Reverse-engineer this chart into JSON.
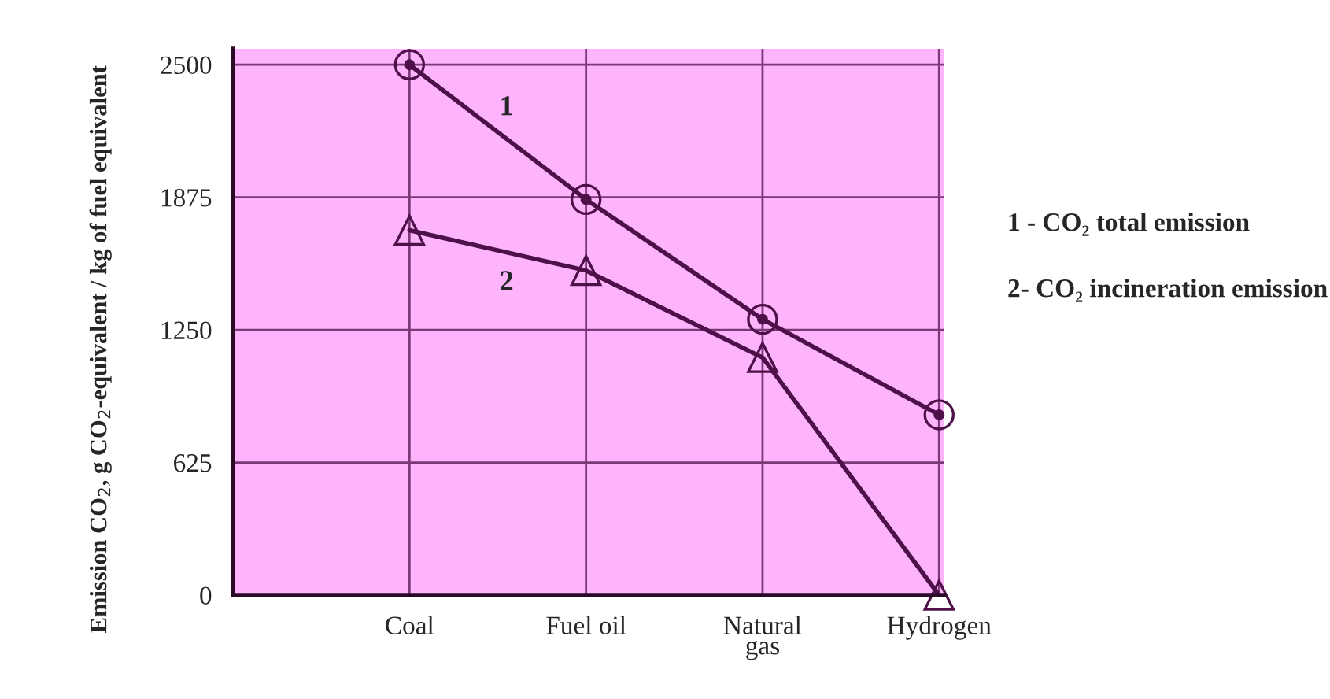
{
  "chart_data": {
    "type": "line",
    "ylabel": "Emission CO$_{2}$, g CO$_{2}$-equivalent / kg of fuel equivalent",
    "categories": [
      "Coal",
      "Fuel oil",
      "Natural\ngas",
      "Hydrogen"
    ],
    "series": [
      {
        "name": "1",
        "color": "#4d1048",
        "marker": "circle",
        "values": [
          2500,
          1865,
          1300,
          850
        ]
      },
      {
        "name": "2",
        "color": "#4d1048",
        "marker": "triangle",
        "values": [
          1720,
          1530,
          1120,
          0
        ]
      }
    ],
    "ylim": [
      0,
      2575
    ],
    "yticks": [
      0,
      625,
      1250,
      1875,
      2500
    ],
    "grid": true,
    "legend": false,
    "line_style": "solid",
    "annotations": [
      "1 - CO₂ total emission",
      "2- CO₂ incineration emission"
    ]
  }
}
